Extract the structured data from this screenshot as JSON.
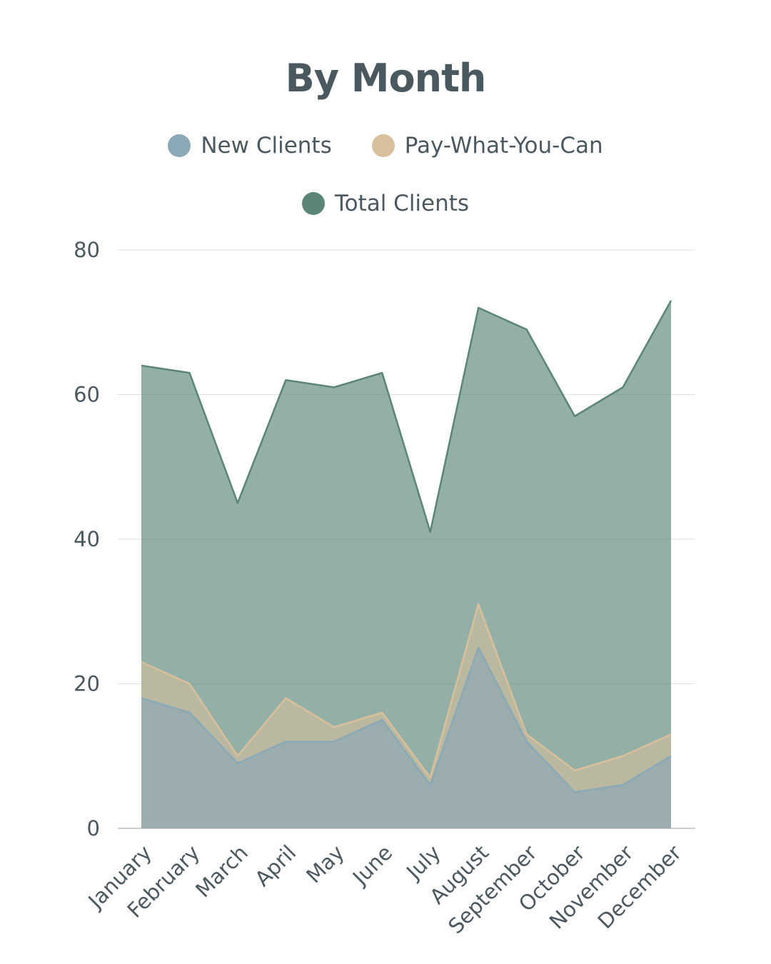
{
  "chart_data": {
    "type": "area",
    "title": "By Month",
    "categories": [
      "January",
      "February",
      "March",
      "April",
      "May",
      "June",
      "July",
      "August",
      "September",
      "October",
      "November",
      "December"
    ],
    "series": [
      {
        "name": "New Clients",
        "color": "#8aa8b6",
        "values": [
          18,
          16,
          9,
          12,
          12,
          15,
          6,
          25,
          12,
          5,
          6,
          10
        ]
      },
      {
        "name": "Pay-What-You-Can",
        "color": "#d9c09c",
        "values": [
          23,
          20,
          10,
          18,
          14,
          16,
          7,
          31,
          13,
          8,
          10,
          13
        ]
      },
      {
        "name": "Total Clients",
        "color": "#5a8577",
        "values": [
          64,
          63,
          45,
          62,
          61,
          63,
          41,
          72,
          69,
          57,
          61,
          73
        ]
      }
    ],
    "ylim": [
      0,
      80
    ],
    "yticks": [
      "0",
      "20",
      "40",
      "60",
      "80"
    ],
    "xlabel": "",
    "ylabel": "",
    "grid": true,
    "legend_position": "top-center"
  }
}
